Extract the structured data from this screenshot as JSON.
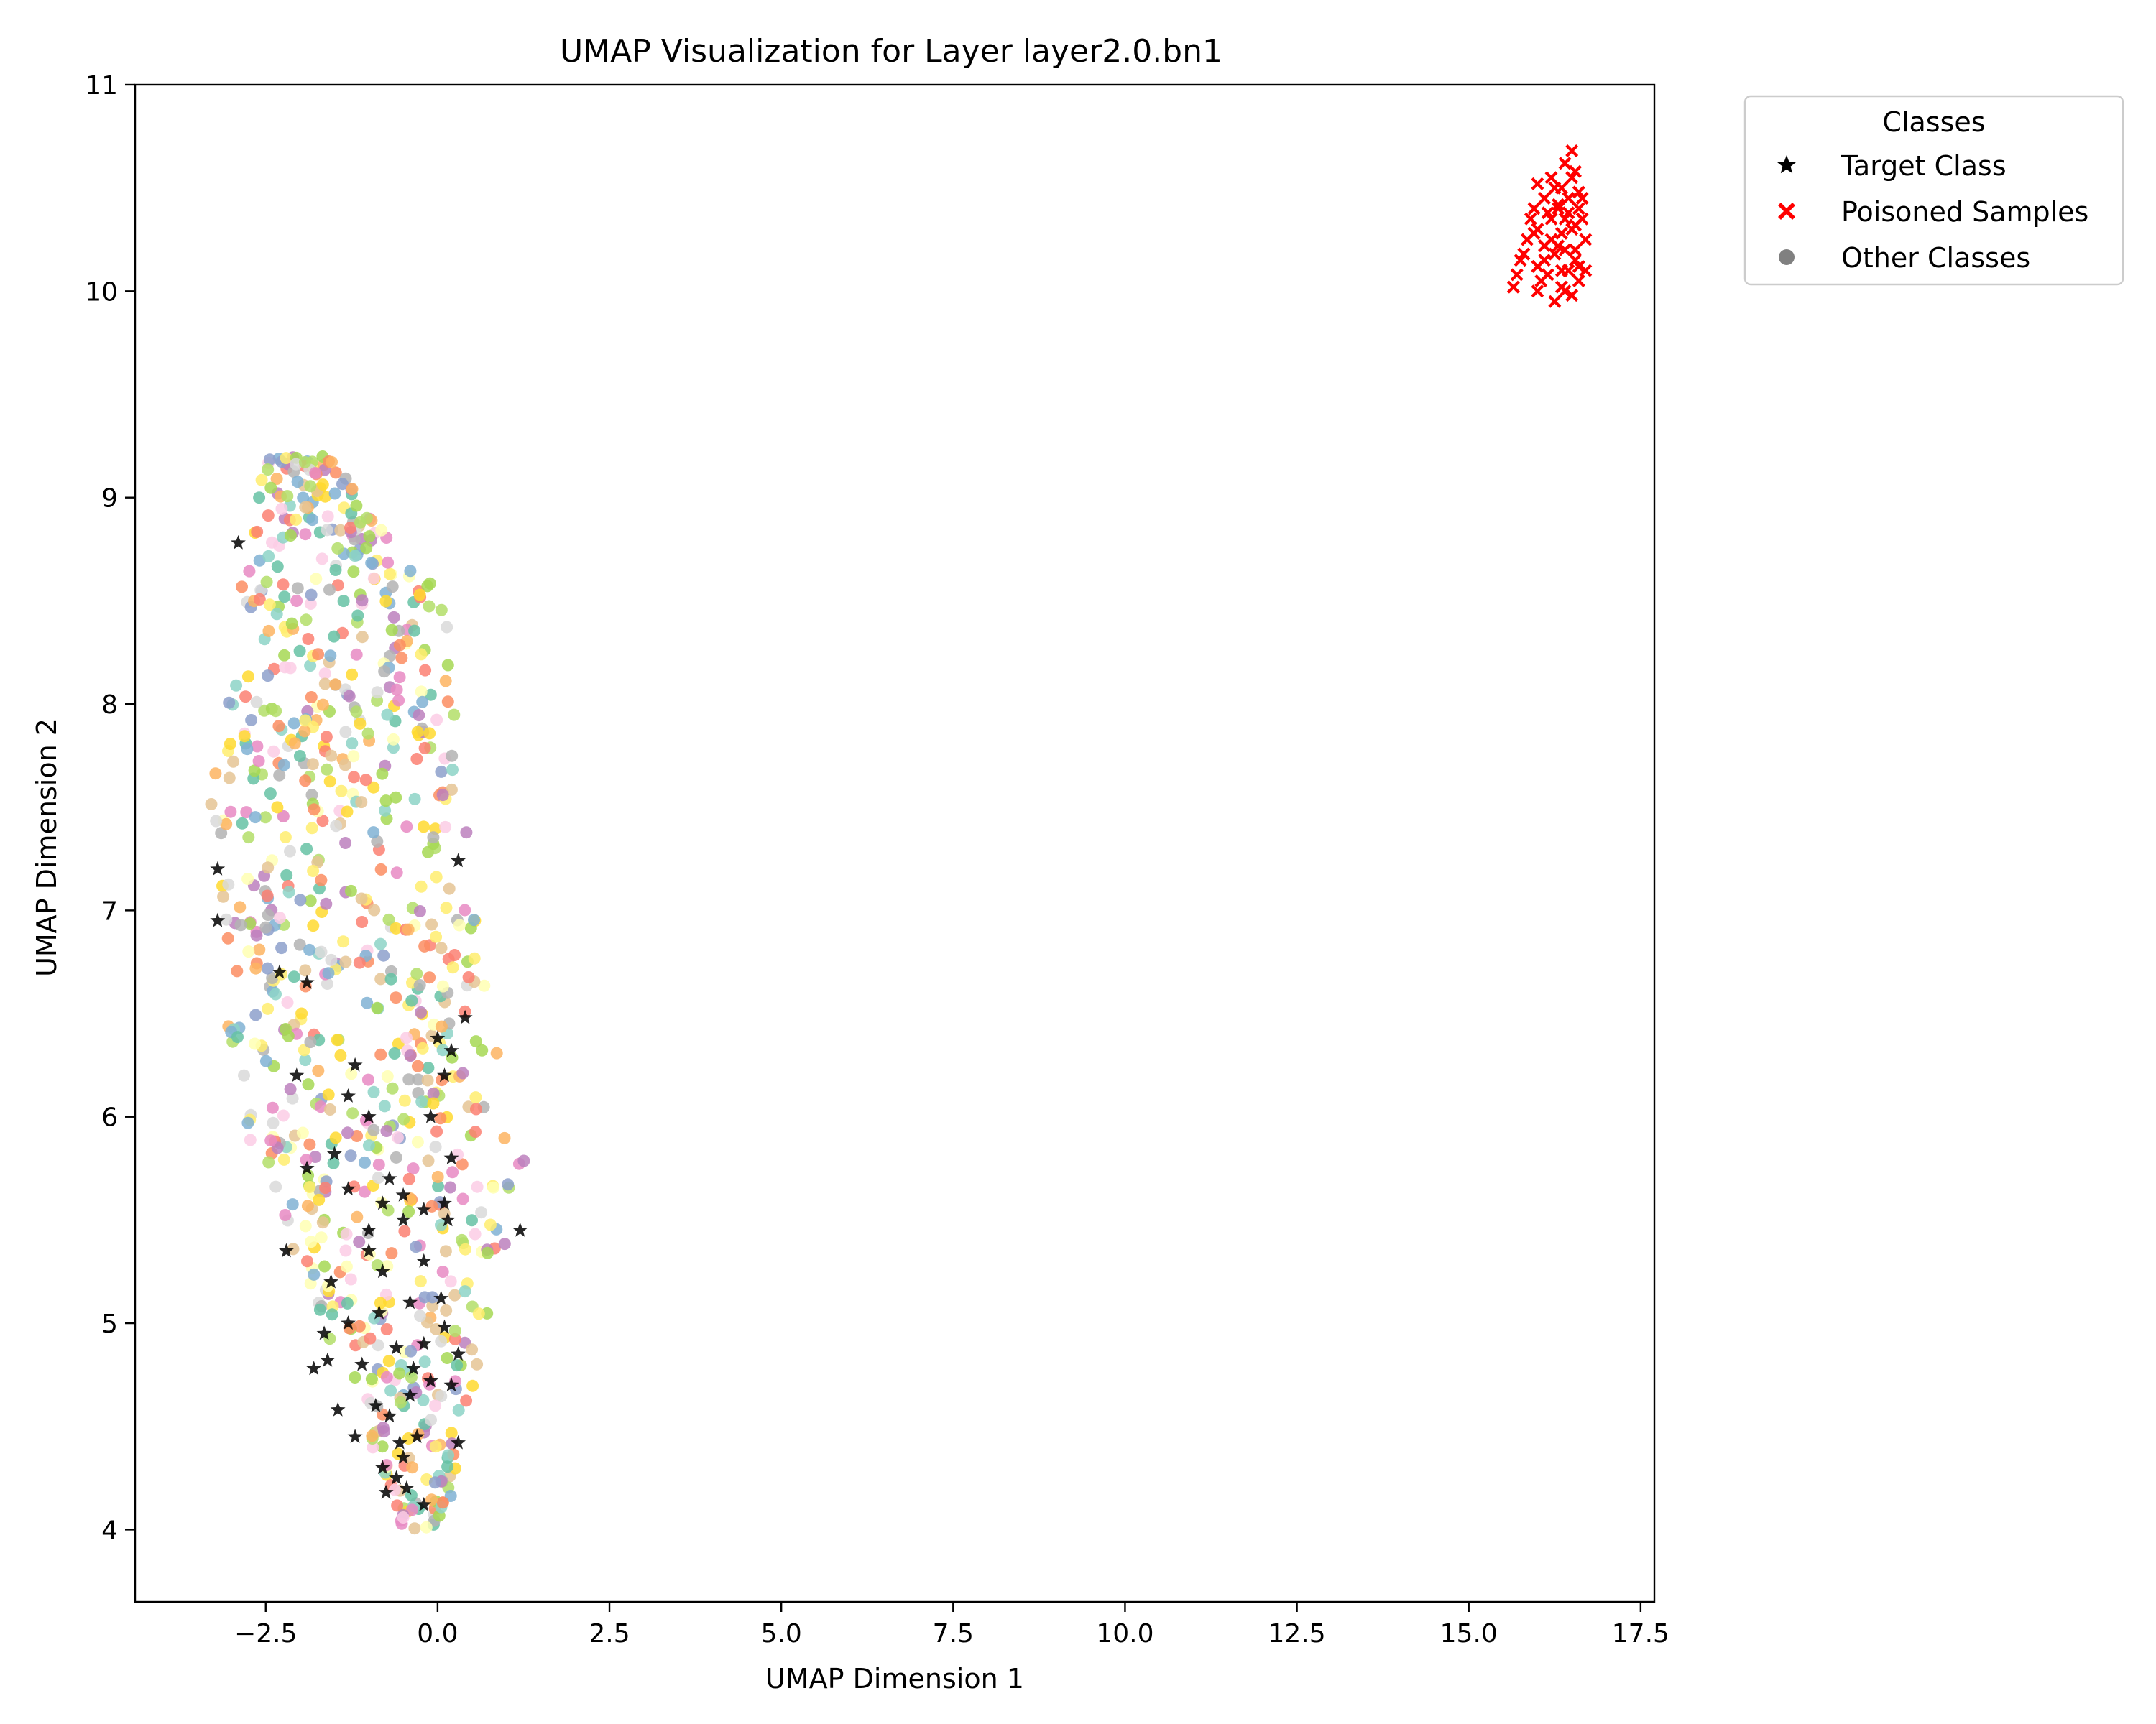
{
  "chart_data": {
    "type": "scatter",
    "title": "UMAP Visualization for Layer layer2.0.bn1",
    "xlabel": "UMAP Dimension 1",
    "ylabel": "UMAP Dimension 2",
    "xlim": [
      -4.4,
      17.7
    ],
    "ylim": [
      3.65,
      11.0
    ],
    "xticks": [
      -2.5,
      0.0,
      2.5,
      5.0,
      7.5,
      10.0,
      12.5,
      15.0,
      17.5
    ],
    "xtick_labels": [
      "−2.5",
      "0.0",
      "2.5",
      "5.0",
      "7.5",
      "10.0",
      "12.5",
      "15.0",
      "17.5"
    ],
    "yticks": [
      4,
      5,
      6,
      7,
      8,
      9,
      10,
      11
    ],
    "ytick_labels": [
      "4",
      "5",
      "6",
      "7",
      "8",
      "9",
      "10",
      "11"
    ],
    "grid": false,
    "legend": {
      "title": "Classes",
      "placement": "outside-top-right",
      "entries": [
        {
          "label": "Target Class",
          "marker": "star",
          "color": "#000000"
        },
        {
          "label": "Poisoned Samples",
          "marker": "x",
          "color": "#ff0000"
        },
        {
          "label": "Other Classes",
          "marker": "circle",
          "color": "#808080"
        }
      ]
    },
    "other_palette": [
      "#8dd3c7",
      "#ffffb3",
      "#fb8072",
      "#80b1d3",
      "#fdb462",
      "#b3de69",
      "#fccde5",
      "#d9d9d9",
      "#bc80bd",
      "#ffed6f",
      "#e78ac3",
      "#a6d854",
      "#ffd92f",
      "#e5c494",
      "#b3b3b3",
      "#66c2a5",
      "#fc8d62",
      "#8da0cb"
    ],
    "series": [
      {
        "name": "Target Class",
        "marker": "star",
        "color": "#000000",
        "points": [
          [
            -0.2,
            4.12
          ],
          [
            -0.45,
            4.2
          ],
          [
            -0.6,
            4.25
          ],
          [
            -0.8,
            4.3
          ],
          [
            -0.5,
            4.35
          ],
          [
            -0.3,
            4.45
          ],
          [
            0.3,
            4.42
          ],
          [
            -0.7,
            4.55
          ],
          [
            -1.2,
            4.45
          ],
          [
            -0.9,
            4.6
          ],
          [
            -0.4,
            4.65
          ],
          [
            -0.1,
            4.72
          ],
          [
            0.2,
            4.7
          ],
          [
            -1.1,
            4.8
          ],
          [
            -1.6,
            4.82
          ],
          [
            -1.8,
            4.78
          ],
          [
            -0.6,
            4.88
          ],
          [
            -0.2,
            4.9
          ],
          [
            0.3,
            4.85
          ],
          [
            -1.65,
            4.95
          ],
          [
            -1.3,
            5.0
          ],
          [
            -0.85,
            5.05
          ],
          [
            -0.4,
            5.1
          ],
          [
            0.05,
            5.12
          ],
          [
            -1.55,
            5.2
          ],
          [
            -0.8,
            5.25
          ],
          [
            -0.2,
            5.3
          ],
          [
            -2.2,
            5.35
          ],
          [
            -1.0,
            5.45
          ],
          [
            -0.5,
            5.5
          ],
          [
            -0.2,
            5.55
          ],
          [
            0.15,
            5.5
          ],
          [
            1.2,
            5.45
          ],
          [
            -0.8,
            5.58
          ],
          [
            -0.5,
            5.62
          ],
          [
            0.1,
            5.58
          ],
          [
            -1.3,
            5.65
          ],
          [
            -1.9,
            5.75
          ],
          [
            -0.7,
            5.7
          ],
          [
            -1.5,
            5.82
          ],
          [
            0.2,
            5.8
          ],
          [
            -1.0,
            6.0
          ],
          [
            -0.1,
            6.0
          ],
          [
            -1.3,
            6.1
          ],
          [
            0.1,
            6.2
          ],
          [
            -2.05,
            6.2
          ],
          [
            -1.2,
            6.25
          ],
          [
            0.2,
            6.32
          ],
          [
            0.0,
            6.38
          ],
          [
            0.4,
            6.48
          ],
          [
            -1.9,
            6.65
          ],
          [
            -2.3,
            6.7
          ],
          [
            -3.2,
            6.95
          ],
          [
            -3.2,
            7.2
          ],
          [
            0.3,
            7.24
          ],
          [
            -2.9,
            8.78
          ],
          [
            -1.45,
            4.58
          ],
          [
            -0.35,
            4.78
          ],
          [
            0.1,
            4.98
          ],
          [
            -1.0,
            5.35
          ],
          [
            -0.55,
            4.42
          ],
          [
            -0.75,
            4.18
          ]
        ]
      },
      {
        "name": "Poisoned Samples",
        "marker": "x",
        "color": "#ff0000",
        "points": [
          [
            16.5,
            10.68
          ],
          [
            16.4,
            10.62
          ],
          [
            16.55,
            10.58
          ],
          [
            16.2,
            10.55
          ],
          [
            16.35,
            10.5
          ],
          [
            16.6,
            10.48
          ],
          [
            16.0,
            10.52
          ],
          [
            16.1,
            10.45
          ],
          [
            16.3,
            10.42
          ],
          [
            16.65,
            10.45
          ],
          [
            15.95,
            10.4
          ],
          [
            16.45,
            10.38
          ],
          [
            16.2,
            10.35
          ],
          [
            16.0,
            10.3
          ],
          [
            16.55,
            10.32
          ],
          [
            16.35,
            10.28
          ],
          [
            15.85,
            10.25
          ],
          [
            16.1,
            10.22
          ],
          [
            16.7,
            10.25
          ],
          [
            16.4,
            10.2
          ],
          [
            16.25,
            10.18
          ],
          [
            15.75,
            10.15
          ],
          [
            16.55,
            10.15
          ],
          [
            16.0,
            10.12
          ],
          [
            16.45,
            10.1
          ],
          [
            16.15,
            10.08
          ],
          [
            16.6,
            10.05
          ],
          [
            15.65,
            10.02
          ],
          [
            16.35,
            10.02
          ],
          [
            16.5,
            9.98
          ],
          [
            16.25,
            9.95
          ],
          [
            16.05,
            10.05
          ],
          [
            16.3,
            10.4
          ],
          [
            16.5,
            10.3
          ],
          [
            15.9,
            10.35
          ],
          [
            16.65,
            10.35
          ],
          [
            16.2,
            10.25
          ],
          [
            16.45,
            10.45
          ],
          [
            16.1,
            10.15
          ],
          [
            16.55,
            10.2
          ],
          [
            15.8,
            10.18
          ],
          [
            16.35,
            10.1
          ],
          [
            16.0,
            10.0
          ],
          [
            16.6,
            10.12
          ],
          [
            16.25,
            10.5
          ],
          [
            15.95,
            10.28
          ],
          [
            16.4,
            10.35
          ],
          [
            16.15,
            10.38
          ],
          [
            16.5,
            10.55
          ],
          [
            16.7,
            10.1
          ],
          [
            16.3,
            10.22
          ],
          [
            15.7,
            10.08
          ],
          [
            16.6,
            10.4
          ],
          [
            16.4,
            10.0
          ]
        ]
      }
    ]
  }
}
